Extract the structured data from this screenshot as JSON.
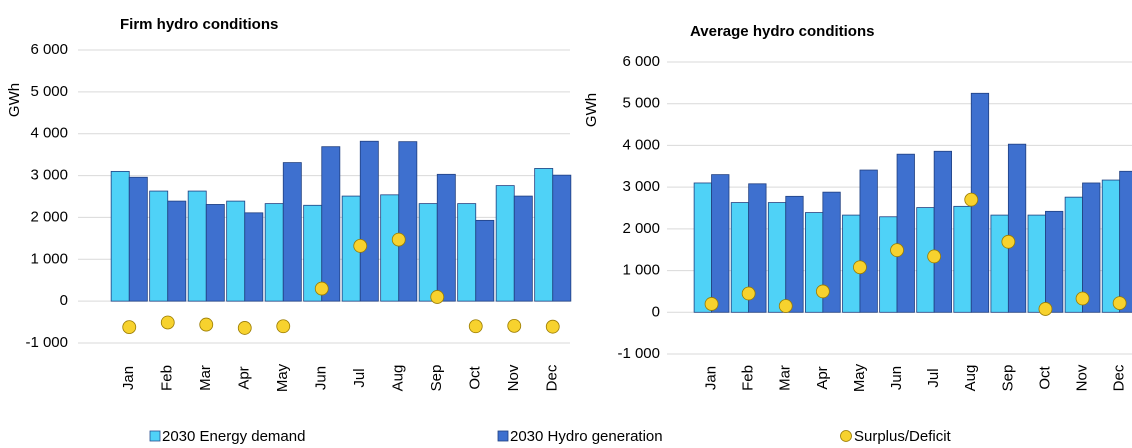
{
  "chart_data": [
    {
      "type": "bar",
      "title": "Firm hydro conditions",
      "y_label": "GWh",
      "categories": [
        "Jan",
        "Feb",
        "Mar",
        "Apr",
        "May",
        "Jun",
        "Jul",
        "Aug",
        "Sep",
        "Oct",
        "Nov",
        "Dec"
      ],
      "series": [
        {
          "name": "2030 Energy demand",
          "color": "#4fd2f7",
          "values": [
            3100,
            2630,
            2630,
            2390,
            2330,
            2290,
            2510,
            2540,
            2330,
            2330,
            2760,
            3170
          ]
        },
        {
          "name": "2030 Hydro generation",
          "color": "#3e70cf",
          "values": [
            2960,
            2390,
            2310,
            2110,
            3310,
            3690,
            3820,
            3810,
            3030,
            1930,
            2510,
            3010
          ]
        },
        {
          "name": "Surplus/Deficit",
          "color": "#f7d22e",
          "marker": "circle",
          "values": [
            -620,
            -510,
            -560,
            -640,
            -600,
            300,
            1320,
            1470,
            100,
            -600,
            -590,
            -610
          ]
        }
      ],
      "ylim": [
        -1000,
        6000
      ],
      "yticks": [
        {
          "value": -1000,
          "label": "-1 000"
        },
        0,
        {
          "value": 1000,
          "label": "1 000"
        },
        {
          "value": 2000,
          "label": "2 000"
        },
        {
          "value": 3000,
          "label": "3 000"
        },
        {
          "value": 4000,
          "label": "4 000"
        },
        {
          "value": 5000,
          "label": "5 000"
        },
        {
          "value": 6000,
          "label": "6 000"
        }
      ],
      "grid": true
    },
    {
      "type": "bar",
      "title": "Average hydro conditions",
      "y_label": "GWh",
      "categories": [
        "Jan",
        "Feb",
        "Mar",
        "Apr",
        "May",
        "Jun",
        "Jul",
        "Aug",
        "Sep",
        "Oct",
        "Nov",
        "Dec"
      ],
      "series": [
        {
          "color": "#4fd2f7",
          "values": [
            3100,
            2630,
            2630,
            2390,
            2330,
            2290,
            2510,
            2540,
            2330,
            2330,
            2760,
            3170
          ]
        },
        {
          "color": "#3e70cf",
          "values": [
            3300,
            3080,
            2780,
            2880,
            3410,
            3790,
            3860,
            5250,
            4030,
            2420,
            3100,
            3380
          ]
        },
        {
          "color": "#f7d22e",
          "marker": "circle",
          "values": [
            200,
            450,
            150,
            500,
            1080,
            1490,
            1340,
            2700,
            1690,
            80,
            330,
            220
          ]
        }
      ],
      "ylim": [
        -1000,
        6000
      ],
      "yticks": [
        {
          "value": -1000,
          "label": "-1 000"
        },
        0,
        {
          "value": 1000,
          "label": "1 000"
        },
        {
          "value": 2000,
          "label": "2 000"
        },
        {
          "value": 3000,
          "label": "3 000"
        },
        {
          "value": 4000,
          "label": "4 000"
        },
        {
          "value": 5000,
          "label": "5 000"
        },
        {
          "value": 6000,
          "label": "6 000"
        }
      ],
      "grid": true
    }
  ]
}
